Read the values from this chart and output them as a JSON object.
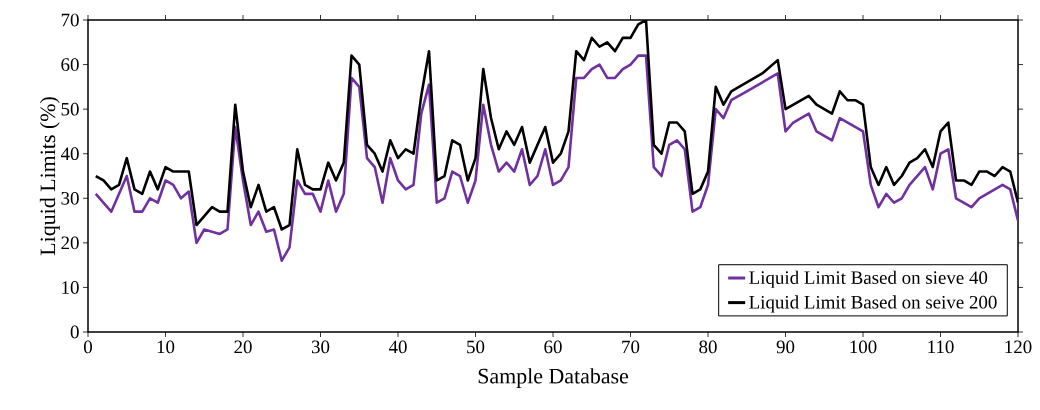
{
  "chart_data": {
    "type": "line",
    "xlabel": "Sample Database",
    "ylabel": "Liquid Limits (%)",
    "xlim": [
      0,
      120
    ],
    "ylim": [
      0,
      70
    ],
    "xticks": [
      0,
      10,
      20,
      30,
      40,
      50,
      60,
      70,
      80,
      90,
      100,
      110,
      120
    ],
    "yticks": [
      0,
      10,
      20,
      30,
      40,
      50,
      60,
      70
    ],
    "grid": false,
    "legend": "bottom right",
    "series": [
      {
        "name": "Liquid Limit Based on sieve 40",
        "color": "#7030a0",
        "x": [
          1,
          3,
          5,
          6,
          7,
          8,
          9,
          10,
          11,
          12,
          13,
          14,
          15,
          17,
          18,
          19,
          20,
          21,
          22,
          23,
          24,
          25,
          26,
          27,
          28,
          29,
          30,
          31,
          32,
          33,
          34,
          35,
          36,
          37,
          38,
          39,
          40,
          41,
          42,
          43,
          44,
          45,
          46,
          47,
          48,
          49,
          50,
          51,
          52,
          53,
          54,
          55,
          56,
          57,
          58,
          59,
          60,
          61,
          62,
          63,
          64,
          65,
          66,
          67,
          68,
          69,
          70,
          71,
          72,
          73,
          74,
          75,
          76,
          77,
          78,
          79,
          80,
          81,
          82,
          83,
          85,
          87,
          89,
          90,
          91,
          92,
          93,
          94,
          95,
          96,
          97,
          98,
          99,
          100,
          101,
          102,
          103,
          104,
          105,
          106,
          107,
          108,
          109,
          110,
          111,
          112,
          113,
          114,
          115,
          117,
          118,
          119,
          120
        ],
        "values": [
          31,
          27,
          35,
          27,
          27,
          30,
          29,
          34,
          33,
          30,
          31.5,
          20,
          23,
          22,
          23,
          46,
          34,
          24,
          27,
          22.5,
          23,
          16,
          19,
          34,
          31,
          31,
          27,
          34,
          27,
          31,
          57,
          55,
          39,
          37,
          29,
          39,
          34,
          32,
          33,
          49,
          55.5,
          29,
          30,
          36,
          35,
          29,
          34,
          51,
          42,
          36,
          38,
          36,
          41,
          33,
          35,
          41,
          33,
          34,
          37,
          57,
          57,
          59,
          60,
          57,
          57,
          59,
          60,
          62,
          62,
          37,
          35,
          42,
          43,
          41,
          27,
          28,
          33,
          50,
          48,
          52,
          54,
          56,
          58,
          45,
          47,
          48,
          49,
          45,
          44,
          43,
          48,
          47,
          46,
          45,
          33,
          28,
          31,
          29,
          30,
          33,
          35,
          37,
          32,
          40,
          41,
          30,
          29,
          28,
          30,
          32,
          33,
          32,
          25
        ]
      },
      {
        "name": "Liquid Limit Based on seive 200",
        "color": "#000000",
        "x": [
          1,
          2,
          3,
          4,
          5,
          6,
          7,
          8,
          9,
          10,
          11,
          12,
          13,
          14,
          15,
          16,
          17,
          18,
          19,
          20,
          21,
          22,
          23,
          24,
          25,
          26,
          27,
          28,
          29,
          30,
          31,
          32,
          33,
          34,
          35,
          36,
          37,
          38,
          39,
          40,
          41,
          42,
          43,
          44,
          45,
          46,
          47,
          48,
          49,
          50,
          51,
          52,
          53,
          54,
          55,
          56,
          57,
          58,
          59,
          60,
          61,
          62,
          63,
          64,
          65,
          66,
          67,
          68,
          69,
          70,
          71,
          72,
          73,
          74,
          75,
          76,
          77,
          78,
          79,
          80,
          81,
          82,
          83,
          85,
          87,
          89,
          90,
          91,
          92,
          93,
          94,
          95,
          96,
          97,
          98,
          99,
          100,
          101,
          102,
          103,
          104,
          105,
          106,
          107,
          108,
          109,
          110,
          111,
          112,
          113,
          114,
          115,
          116,
          117,
          118,
          119,
          120
        ],
        "values": [
          35,
          34,
          32,
          33,
          39,
          32,
          31,
          36,
          32,
          37,
          36,
          36,
          36,
          24,
          26,
          28,
          27,
          27,
          51,
          36,
          28,
          33,
          27,
          28,
          23,
          24,
          41,
          33,
          32,
          32,
          38,
          34,
          38,
          62,
          60,
          42,
          40,
          36,
          43,
          39,
          41,
          40,
          53,
          63,
          34,
          35,
          43,
          42,
          34,
          39,
          59,
          48,
          41,
          45,
          42,
          46,
          38,
          42,
          46,
          38,
          40,
          45,
          63,
          61,
          66,
          64,
          65,
          63,
          66,
          66,
          69,
          70,
          42,
          40,
          47,
          47,
          45,
          31,
          32,
          36,
          55,
          51,
          54,
          56,
          58,
          61,
          50,
          51,
          52,
          53,
          51,
          50,
          49,
          54,
          52,
          52,
          51,
          37,
          33,
          37,
          33,
          35,
          38,
          39,
          41,
          37,
          45,
          47,
          34,
          34,
          33,
          36,
          36,
          35,
          37,
          36,
          29
        ]
      }
    ]
  }
}
